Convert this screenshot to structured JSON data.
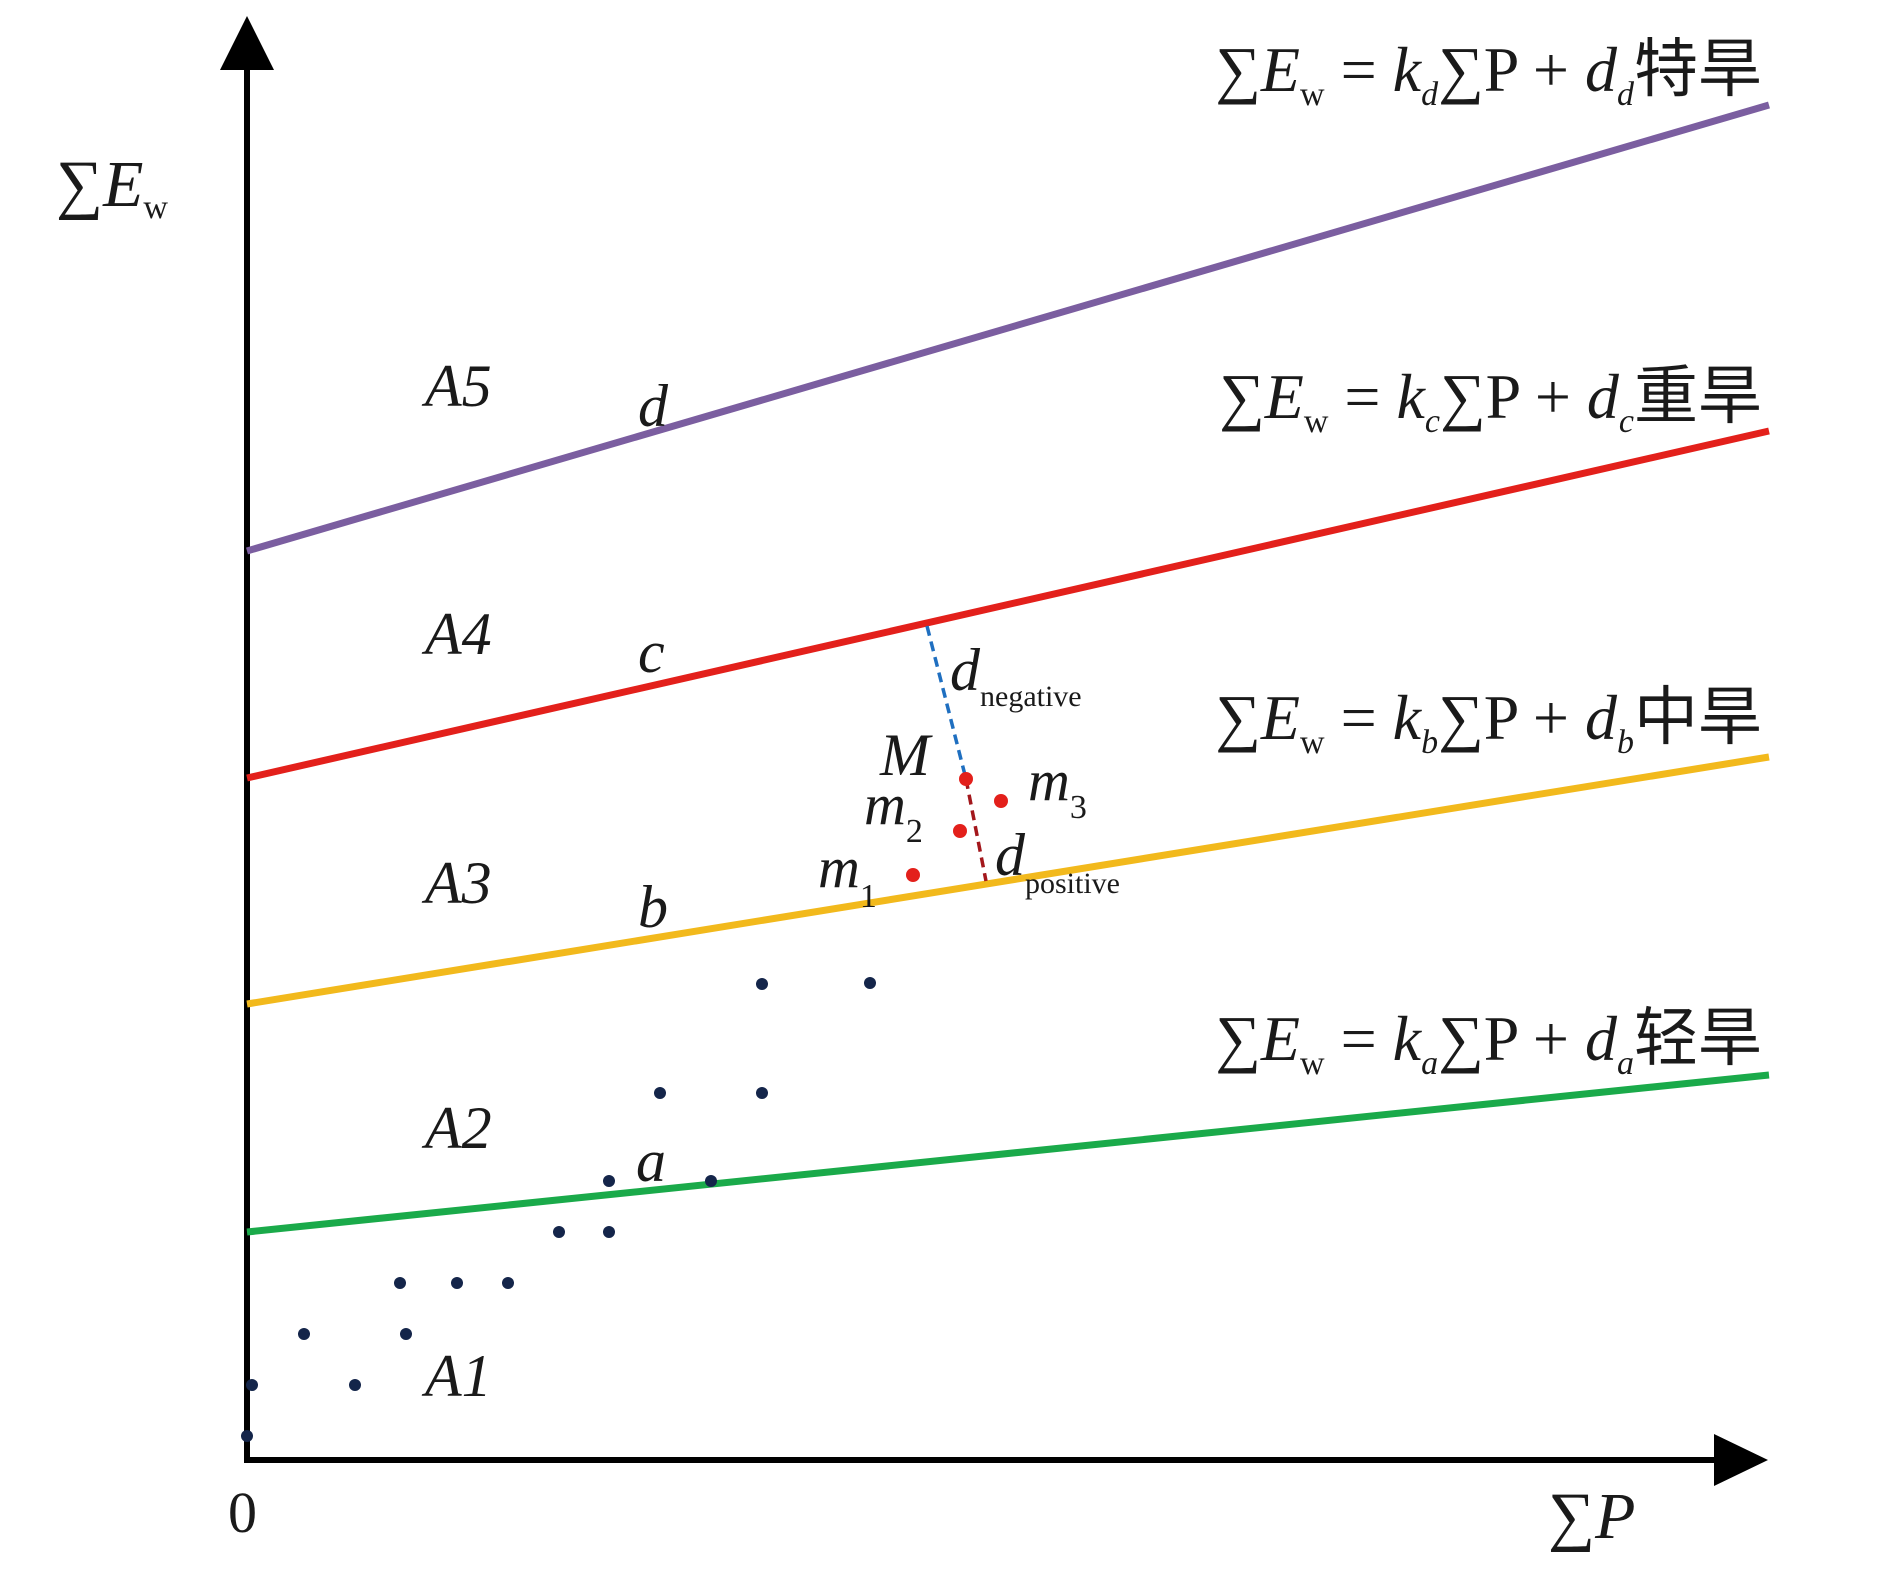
{
  "axes": {
    "y_label": {
      "sigma": "∑",
      "var": "E",
      "sub": "w"
    },
    "x_label": {
      "sigma": "∑",
      "var": "P"
    },
    "origin": "0"
  },
  "zones": [
    "A1",
    "A2",
    "A3",
    "A4",
    "A5"
  ],
  "lines": [
    {
      "name": "a",
      "color": "#1aaa4a",
      "k_sub": "a",
      "d_sub": "a",
      "grade": "轻旱"
    },
    {
      "name": "b",
      "color": "#f2b91c",
      "k_sub": "b",
      "d_sub": "b",
      "grade": "中旱"
    },
    {
      "name": "c",
      "color": "#e3201b",
      "k_sub": "c",
      "d_sub": "c",
      "grade": "重旱"
    },
    {
      "name": "d",
      "color": "#7b5ea0",
      "k_sub": "d",
      "d_sub": "d",
      "grade": "特旱"
    }
  ],
  "equation": {
    "sigma_e": "∑",
    "e": "E",
    "w": "w",
    "eq": " = ",
    "k": "k",
    "sigma_p": "∑P + ",
    "d": "d"
  },
  "points_label": {
    "M": "M",
    "m": "m",
    "m1": "1",
    "m2": "2",
    "m3": "3"
  },
  "distances": {
    "d": "d",
    "negative": "negative",
    "positive": "positive"
  },
  "colors": {
    "points": "#14254a",
    "highlight": "#e3201b",
    "negative_dash": "#1f6fc0",
    "positive_dash": "#a3171c"
  }
}
